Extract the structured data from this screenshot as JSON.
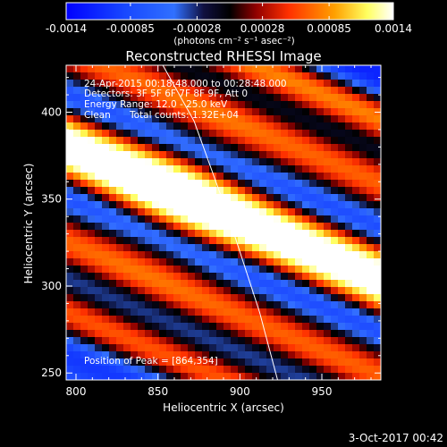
{
  "colorbar": {
    "ticks": [
      {
        "label": "-0.0014",
        "value": -0.0014
      },
      {
        "label": "-0.00085",
        "value": -0.00085
      },
      {
        "label": "-0.00028",
        "value": -0.00028
      },
      {
        "label": "0.00028",
        "value": 0.00028
      },
      {
        "label": "0.00085",
        "value": 0.00085
      },
      {
        "label": "0.0014",
        "value": 0.0014
      }
    ],
    "range": [
      -0.0014,
      0.0014
    ],
    "unit_label": "(photons cm⁻² s⁻¹ asec⁻²)",
    "colors": [
      "#0000ff",
      "#2060ff",
      "#000000",
      "#ff2000",
      "#ff9000",
      "#ffff90",
      "#ffffff"
    ]
  },
  "chart_data": {
    "type": "heatmap",
    "title": "Reconstructed RHESSI Image",
    "xlabel": "Heliocentric X (arcsec)",
    "ylabel": "Heliocentric Y (arcsec)",
    "xlim": [
      794,
      986
    ],
    "ylim": [
      246,
      427
    ],
    "x_ticks": [
      800,
      850,
      900,
      950
    ],
    "y_ticks": [
      250,
      300,
      350,
      400
    ],
    "annotations": {
      "time_range": "24-Apr-2015 00:18:48.000 to 00:28:48.000",
      "detectors": "Detectors: 3F 5F 6F 7F 8F 9F, Att 0",
      "energy_range": "Energy Range: 12.0 - 25.0 keV",
      "clean_label": "Clean",
      "total_counts": "Total counts: 1.32E+04",
      "peak_position": "Position of Peak = [864,354]"
    },
    "peak": [
      864,
      354
    ],
    "limb_curve": {
      "x": [
        853,
        872,
        893,
        912,
        923
      ],
      "y": [
        427,
        395,
        340,
        285,
        246
      ]
    },
    "band_model": {
      "slope": -0.4,
      "pivot_x": 890,
      "center_offset": 342,
      "period": 120,
      "sigma_main": 18,
      "sigma_side": 12,
      "side_offsets": [
        60,
        -60,
        -100,
        95
      ]
    }
  },
  "footer": {
    "date": "3-Oct-2017 00:42"
  }
}
